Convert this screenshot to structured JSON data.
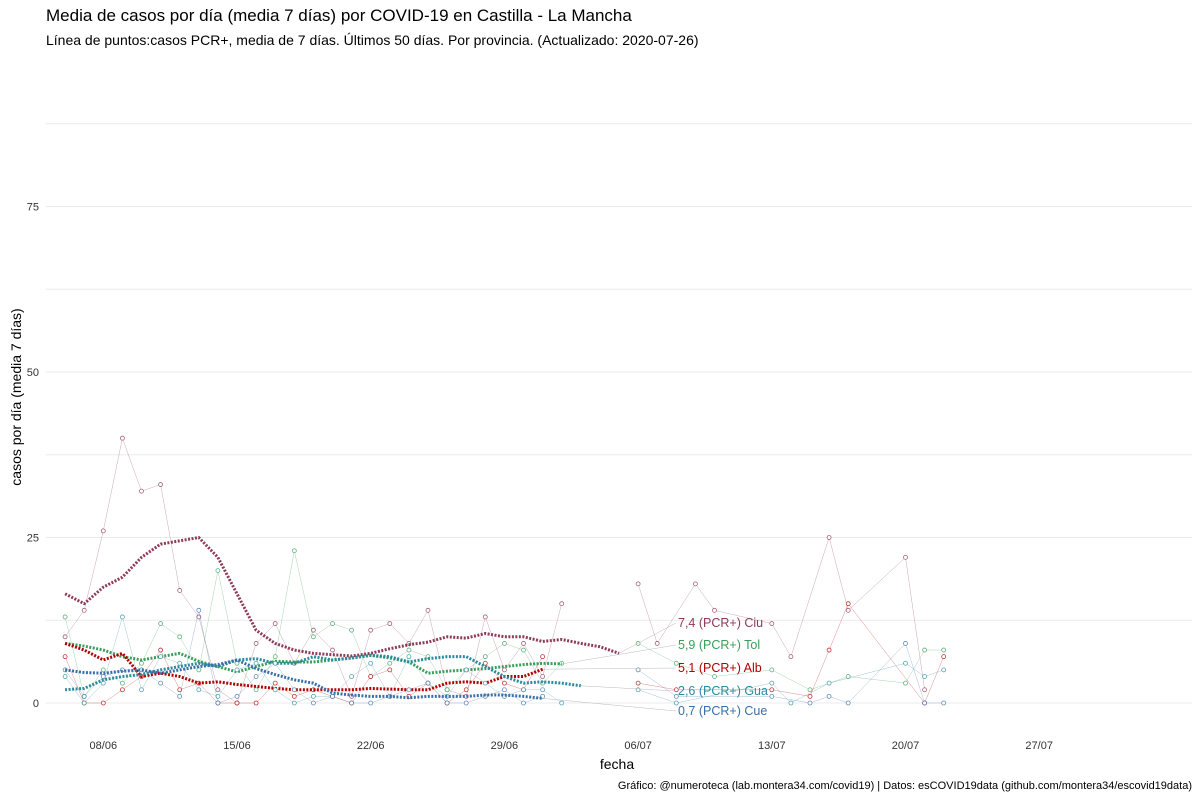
{
  "chart_data": {
    "type": "line",
    "title": "Media de casos por día (media 7 días) por COVID-19 en Castilla - La Mancha",
    "subtitle": "Línea de puntos:casos PCR+, media de 7 días. Últimos 50 días. Por provincia. (Actualizado: 2020-07-26)",
    "xlabel": "fecha",
    "ylabel": "casos por día (media 7 días)",
    "caption": "Gráfico: @numeroteca (lab.montera34.com/covid19) | Datos: esCOVID19data (github.com/montera34/escovid19data)",
    "ylim": [
      -5,
      92
    ],
    "yticks": [
      0,
      25,
      50,
      75
    ],
    "xlim_day": [
      0,
      53
    ],
    "xticks": [
      {
        "day": 3,
        "label": "08/06"
      },
      {
        "day": 10,
        "label": "15/06"
      },
      {
        "day": 17,
        "label": "22/06"
      },
      {
        "day": 24,
        "label": "29/06"
      },
      {
        "day": 31,
        "label": "06/07"
      },
      {
        "day": 38,
        "label": "13/07"
      },
      {
        "day": 45,
        "label": "20/07"
      },
      {
        "day": 52,
        "label": "27/07"
      }
    ],
    "grid": true,
    "legend": "none",
    "series": [
      {
        "name": "Ciu",
        "end_label": "7,4 (PCR+) Ciu",
        "color": "#8e3a59",
        "day0": 1,
        "avg": [
          16.5,
          15,
          17.5,
          19,
          22,
          24,
          24.5,
          25,
          22,
          16.5,
          11,
          9,
          8,
          7.5,
          7.3,
          7.1,
          7.5,
          8.2,
          8.8,
          9.2,
          10,
          9.8,
          10.5,
          10,
          10,
          9.3,
          9.6,
          9,
          8.5,
          7.5
        ],
        "cases": [
          10,
          14,
          26,
          40,
          32,
          33,
          17,
          13,
          2,
          0,
          9,
          12,
          6,
          11,
          8,
          1,
          11,
          12,
          9,
          14,
          2,
          1,
          13,
          5,
          9,
          4,
          15
        ],
        "late_points": [
          {
            "day": 31,
            "v": 18
          },
          {
            "day": 32,
            "v": 9
          },
          {
            "day": 34,
            "v": 18
          },
          {
            "day": 35,
            "v": 14
          },
          {
            "day": 38,
            "v": 12
          },
          {
            "day": 39,
            "v": 7
          },
          {
            "day": 41,
            "v": 25
          },
          {
            "day": 42,
            "v": 14
          },
          {
            "day": 45,
            "v": 22
          },
          {
            "day": 46,
            "v": 2
          }
        ]
      },
      {
        "name": "Tol",
        "end_label": "5,9 (PCR+) Tol",
        "color": "#3a9e5a",
        "day0": 1,
        "avg": [
          9,
          8.6,
          8,
          7,
          6.5,
          7,
          7.5,
          6.3,
          5.5,
          4.7,
          5.5,
          6.3,
          6.2,
          6.2,
          6.5,
          6.8,
          7.2,
          6.8,
          6.2,
          4.5,
          4.8,
          5,
          5.2,
          5.5,
          5.8,
          6,
          5.9
        ],
        "cases": [
          13,
          1,
          5,
          3,
          6,
          12,
          10,
          5,
          20,
          6,
          2,
          7,
          23,
          10,
          12,
          11,
          4,
          6,
          8,
          7,
          2,
          5,
          7,
          9,
          8,
          3,
          6
        ],
        "late_points": [
          {
            "day": 31,
            "v": 9
          },
          {
            "day": 33,
            "v": 6
          },
          {
            "day": 35,
            "v": 4
          },
          {
            "day": 38,
            "v": 5
          },
          {
            "day": 40,
            "v": 2
          },
          {
            "day": 42,
            "v": 4
          },
          {
            "day": 45,
            "v": 3
          },
          {
            "day": 46,
            "v": 8
          },
          {
            "day": 47,
            "v": 8
          }
        ]
      },
      {
        "name": "Alb",
        "end_label": "5,1 (PCR+) Alb",
        "color": "#b30000",
        "day0": 1,
        "avg": [
          9,
          8,
          6.5,
          7.5,
          4,
          4.5,
          4,
          3,
          3.2,
          2.8,
          2.5,
          2.2,
          2,
          2,
          2,
          2,
          2.2,
          2.1,
          2,
          2,
          3,
          3.2,
          3,
          4,
          4,
          5.1
        ],
        "cases": [
          7,
          0,
          0,
          2,
          4,
          8,
          2,
          3,
          0,
          0,
          0,
          3,
          1,
          2,
          1,
          0,
          4,
          5,
          1,
          3,
          0,
          2,
          6,
          3,
          2,
          7
        ],
        "late_points": [
          {
            "day": 31,
            "v": 3
          },
          {
            "day": 33,
            "v": 2
          },
          {
            "day": 38,
            "v": 2
          },
          {
            "day": 40,
            "v": 1
          },
          {
            "day": 41,
            "v": 8
          },
          {
            "day": 42,
            "v": 15
          },
          {
            "day": 46,
            "v": 0
          },
          {
            "day": 47,
            "v": 7
          }
        ]
      },
      {
        "name": "Gua",
        "end_label": "2,6 (PCR+) Gua",
        "color": "#2a8a9e",
        "day0": 1,
        "avg": [
          2,
          2.2,
          3.5,
          4,
          4.3,
          5,
          5.5,
          6,
          5.5,
          6.5,
          6.7,
          6,
          6,
          7,
          6.5,
          6.8,
          7.2,
          7,
          6.2,
          6.7,
          7,
          7,
          5.5,
          4,
          3,
          3.2,
          3,
          2.6
        ],
        "cases": [
          4,
          0,
          3,
          13,
          2,
          7,
          6,
          2,
          1,
          5,
          6,
          2,
          0,
          1,
          1,
          4,
          6,
          1,
          7,
          3,
          1,
          5,
          3,
          1,
          2,
          2,
          0
        ],
        "late_points": [
          {
            "day": 31,
            "v": 2
          },
          {
            "day": 33,
            "v": 0
          },
          {
            "day": 38,
            "v": 3
          },
          {
            "day": 39,
            "v": 0
          },
          {
            "day": 41,
            "v": 3
          },
          {
            "day": 45,
            "v": 6
          },
          {
            "day": 46,
            "v": 4
          },
          {
            "day": 47,
            "v": 5
          }
        ]
      },
      {
        "name": "Cue",
        "end_label": "0,7 (PCR+) Cue",
        "color": "#3a6ea8",
        "day0": 1,
        "avg": [
          5,
          4.6,
          4.5,
          4.8,
          5,
          4.5,
          5,
          5.5,
          5.8,
          6.5,
          5.2,
          4.3,
          3.5,
          3,
          1.5,
          1.2,
          1,
          1,
          0.8,
          1,
          1,
          1,
          1.2,
          1.2,
          1,
          0.7
        ],
        "cases": [
          5,
          1,
          4,
          5,
          5,
          3,
          1,
          14,
          0,
          1,
          4,
          6,
          2,
          0,
          1,
          0,
          0,
          1,
          2,
          3,
          0,
          0,
          1,
          2,
          0,
          1
        ],
        "late_points": [
          {
            "day": 31,
            "v": 5
          },
          {
            "day": 33,
            "v": 1
          },
          {
            "day": 38,
            "v": 1
          },
          {
            "day": 40,
            "v": 0
          },
          {
            "day": 41,
            "v": 1
          },
          {
            "day": 42,
            "v": 0
          },
          {
            "day": 45,
            "v": 9
          },
          {
            "day": 46,
            "v": 0
          },
          {
            "day": 47,
            "v": 0
          }
        ]
      }
    ]
  }
}
